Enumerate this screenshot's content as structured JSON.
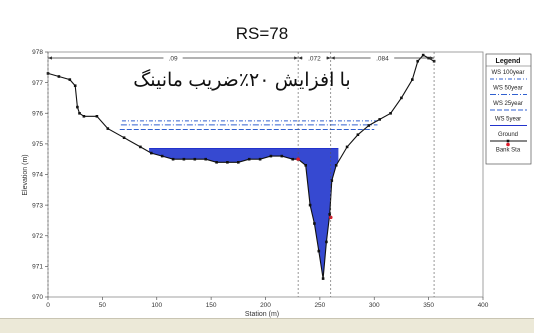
{
  "header": {
    "title": "RS=78"
  },
  "annotation": {
    "text": "با افزایش ۲۰٪ضریب مانینگ"
  },
  "chart_data": {
    "type": "line",
    "xlabel": "Station (m)",
    "ylabel": "Elevation (m)",
    "xlim": [
      0,
      400
    ],
    "ylim": [
      970,
      978
    ],
    "xticks": [
      0,
      50,
      100,
      150,
      200,
      250,
      300,
      350,
      400
    ],
    "yticks": [
      970,
      971,
      972,
      973,
      974,
      975,
      976,
      977,
      978
    ],
    "grid": false,
    "legend_position": "right",
    "legend_title": "Legend",
    "legend": [
      "WS 100year",
      "WS 50year",
      "WS 25year",
      "WS 5year",
      "Ground",
      "Bank Sta"
    ],
    "manning_n": [
      {
        "label": ".09",
        "from": 0,
        "to": 230
      },
      {
        "label": ".072",
        "from": 230,
        "to": 260
      },
      {
        "label": ".084",
        "from": 260,
        "to": 355
      }
    ],
    "ground": {
      "name": "Ground",
      "x": [
        0,
        10,
        20,
        25,
        27,
        29,
        33,
        45,
        55,
        70,
        85,
        95,
        105,
        115,
        125,
        135,
        145,
        155,
        165,
        175,
        185,
        195,
        205,
        215,
        225,
        230,
        237,
        241,
        245,
        249,
        253,
        256,
        259,
        261,
        265,
        275,
        285,
        295,
        305,
        315,
        325,
        335,
        340,
        345,
        350,
        355
      ],
      "y": [
        977.3,
        977.2,
        977.1,
        976.9,
        976.2,
        976.0,
        975.9,
        975.9,
        975.5,
        975.2,
        974.9,
        974.7,
        974.6,
        974.5,
        974.5,
        974.5,
        974.5,
        974.4,
        974.4,
        974.4,
        974.5,
        974.5,
        974.6,
        974.6,
        974.5,
        974.5,
        974.3,
        973.0,
        972.4,
        971.5,
        970.6,
        971.8,
        972.7,
        973.8,
        974.3,
        974.9,
        975.3,
        975.6,
        975.8,
        976.0,
        976.5,
        977.1,
        977.7,
        977.9,
        977.8,
        977.7
      ]
    },
    "water_surfaces": [
      {
        "name": "WS 100year",
        "elevation": 975.75,
        "x_from": 68,
        "x_to": 305,
        "color": "#3060d0",
        "dash": "4,2,1,2"
      },
      {
        "name": "WS 50year",
        "elevation": 975.62,
        "x_from": 67,
        "x_to": 303,
        "color": "#3060d0",
        "dash": "6,2,1,2"
      },
      {
        "name": "WS 25year",
        "elevation": 975.47,
        "x_from": 66,
        "x_to": 300,
        "color": "#3060d0",
        "dash": "5,2"
      },
      {
        "name": "WS 5year",
        "elevation": 974.85,
        "x_from": 93,
        "x_to": 267,
        "color": "#2233cc",
        "dash": ""
      }
    ],
    "bank_stations": [
      {
        "x": 230,
        "y": 974.5
      },
      {
        "x": 260,
        "y": 972.6
      }
    ]
  }
}
